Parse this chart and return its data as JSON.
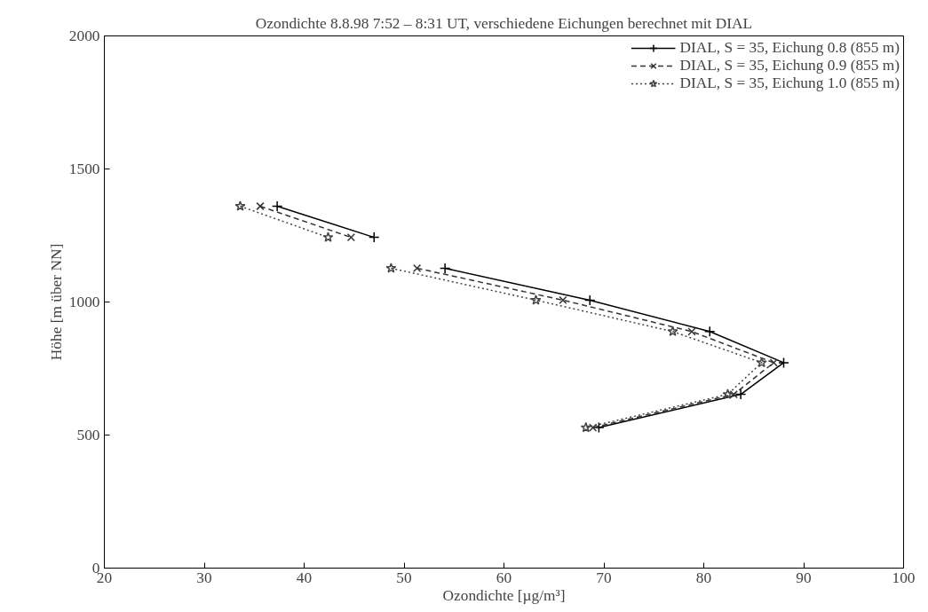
{
  "chart_data": {
    "type": "line",
    "title": "Ozondichte 8.8.98 7:52 – 8:31 UT, verschiedene Eichungen berechnet mit DIAL",
    "xlabel": "Ozondichte [µg/m³]",
    "ylabel": "Höhe [m über NN]",
    "xlim": [
      20,
      100
    ],
    "xticks": [
      20,
      30,
      40,
      50,
      60,
      70,
      80,
      90,
      100
    ],
    "ylim": [
      0,
      2000
    ],
    "yticks": [
      0,
      500,
      1000,
      1500,
      2000
    ],
    "grid": false,
    "legend": "top right",
    "series": [
      {
        "name": "DIAL, S = 35, Eichung 0.8 (855 m)",
        "color": "#000000",
        "marker": "cross",
        "line_style": "solid",
        "x": [
          37.3,
          47.0,
          null,
          54.1,
          68.6,
          80.6,
          88.0,
          83.7,
          69.5
        ],
        "values": [
          1360,
          1243,
          null,
          1127,
          1007,
          889,
          772,
          653,
          528
        ]
      },
      {
        "name": "DIAL, S = 35, Eichung 0.9 (855 m)",
        "color": "#333333",
        "marker": "x",
        "line_style": "dashed",
        "x": [
          35.6,
          44.7,
          null,
          51.3,
          65.9,
          78.8,
          87.0,
          83.0,
          68.9
        ],
        "values": [
          1360,
          1243,
          null,
          1127,
          1007,
          889,
          772,
          653,
          528
        ]
      },
      {
        "name": "DIAL, S = 35, Eichung 1.0 (855 m)",
        "color": "#444444",
        "marker": "star",
        "line_style": "dotted",
        "x": [
          33.6,
          42.4,
          null,
          48.7,
          63.2,
          76.9,
          85.8,
          82.4,
          68.2
        ],
        "values": [
          1360,
          1243,
          null,
          1127,
          1007,
          889,
          772,
          653,
          528
        ]
      }
    ]
  }
}
